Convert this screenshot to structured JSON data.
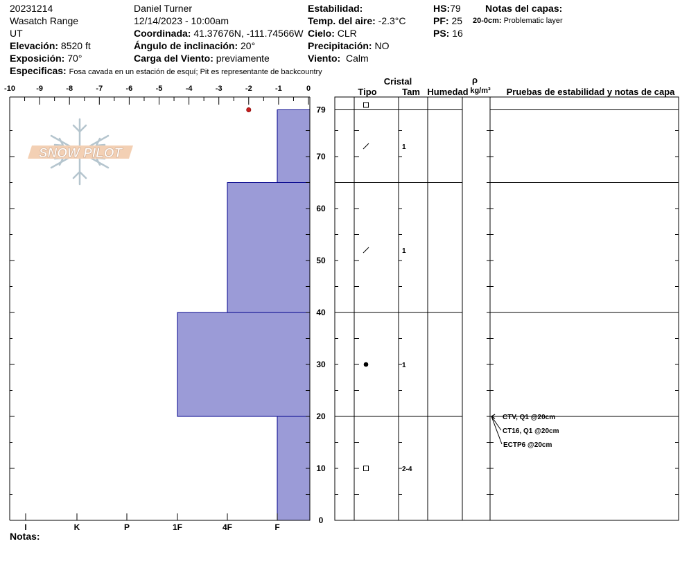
{
  "header": {
    "date_code": "20231214",
    "range": "Wasatch Range",
    "state": "UT",
    "elevation_label": "Elevación:",
    "elevation_value": "8520 ft",
    "aspect_label": "Exposición:",
    "aspect_value": "70°",
    "specifics_label": "Especificas:",
    "specifics_value": "Fosa cavada en un estación de esquí; Pit es representante de backcountry",
    "observer": "Daniel Turner",
    "datetime": "12/14/2023 - 10:00am",
    "coord_label": "Coordinada:",
    "coord_value": "41.37676N, -111.74566W",
    "slope_label": "Ángulo de inclinación:",
    "slope_value": "20°",
    "wind_load_label": "Carga del Viento:",
    "wind_load_value": "previamente",
    "stability_label": "Estabilidad:",
    "air_temp_label": "Temp. del aire:",
    "air_temp_value": "-2.3°C",
    "sky_label": "Cielo:",
    "sky_value": "CLR",
    "precip_label": "Precipitación:",
    "precip_value": "NO",
    "wind_label": "Viento:",
    "wind_value": "Calm",
    "hs_label": "HS:",
    "hs_value": "79",
    "pf_label": "PF:",
    "pf_value": "25",
    "ps_label": "PS:",
    "ps_value": "16",
    "layer_notes_label": "Notas del capas:",
    "layer_note_depth": "20-0cm:",
    "layer_note_text": "Problematic layer"
  },
  "logo_text": "SNOW PILOT",
  "notes_label": "Notas:",
  "colors": {
    "hardness_fill": "#9b9bd7",
    "hardness_edge": "#00008b",
    "temp_point": "#c81e1e"
  },
  "columns": {
    "crystal": "Cristal",
    "type": "Tipo",
    "size": "Tam",
    "moisture": "Humedad",
    "rho": "ρ",
    "density_unit": "kg/m³",
    "tests": "Pruebas de estabilidad y notas de capa"
  },
  "chart_data": {
    "type": "bar",
    "temperature_axis": {
      "ticks": [
        "-10",
        "-9",
        "-8",
        "-7",
        "-6",
        "-5",
        "-4",
        "-3",
        "-2",
        "-1",
        "0"
      ],
      "range": [
        -10,
        0
      ]
    },
    "hardness_axis": {
      "ticks": [
        "I",
        "K",
        "P",
        "1F",
        "4F",
        "F"
      ]
    },
    "height_axis": {
      "ticks": [
        "0",
        "10",
        "20",
        "30",
        "40",
        "50",
        "60",
        "70",
        "79"
      ],
      "range": [
        0,
        79
      ]
    },
    "hardness_layers": [
      {
        "bottom": 65,
        "top": 79,
        "hardness": "F"
      },
      {
        "bottom": 40,
        "top": 65,
        "hardness": "4F"
      },
      {
        "bottom": 20,
        "top": 40,
        "hardness": "1F"
      },
      {
        "bottom": 0,
        "top": 20,
        "hardness": "F"
      }
    ],
    "temperature_points": [
      {
        "height": 79,
        "temp": -2
      }
    ],
    "layer_boundaries": [
      79,
      65,
      40,
      20,
      0
    ],
    "grains": [
      {
        "height": 79,
        "type": "surface-hoar",
        "size": ""
      },
      {
        "height": 72,
        "type": "decomposing",
        "size": "1"
      },
      {
        "height": 52,
        "type": "decomposing",
        "size": "1"
      },
      {
        "height": 30,
        "type": "rounds",
        "size": "1"
      },
      {
        "height": 10,
        "type": "surface-hoar",
        "size": "2-4"
      }
    ],
    "stability_tests": [
      {
        "label": "CTV, Q1 @20cm",
        "height": 20
      },
      {
        "label": "CT16, Q1 @20cm",
        "height": 20
      },
      {
        "label": "ECTP6 @20cm",
        "height": 20
      }
    ]
  }
}
